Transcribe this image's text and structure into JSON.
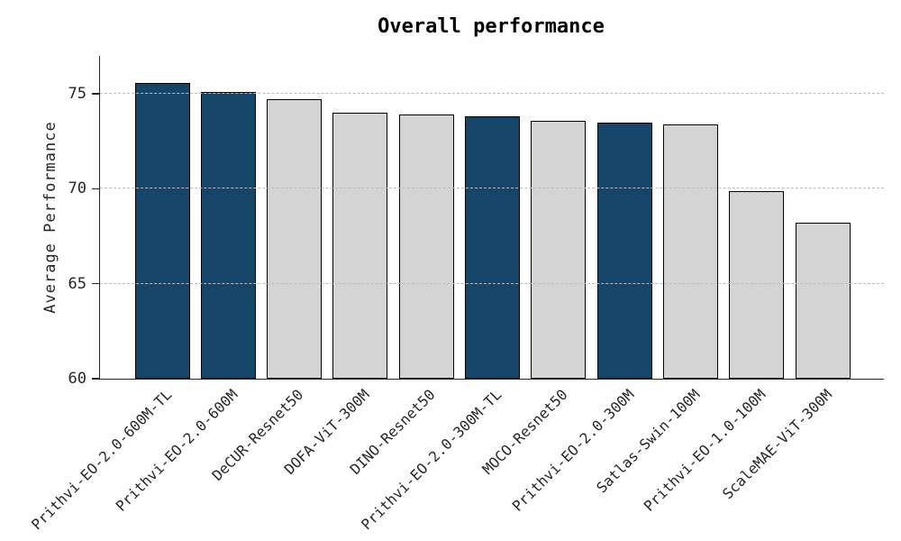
{
  "chart_data": {
    "type": "bar",
    "title": "Overall performance",
    "ylabel": "Average Performance",
    "xlabel": "",
    "categories": [
      "Prithvi-EO-2.0-600M-TL",
      "Prithvi-EO-2.0-600M",
      "DeCUR-Resnet50",
      "DOFA-ViT-300M",
      "DINO-Resnet50",
      "Prithvi-EO-2.0-300M-TL",
      "MOCO-Resnet50",
      "Prithvi-EO-2.0-300M",
      "Satlas-Swin-100M",
      "Prithvi-EO-1.0-100M",
      "ScaleMAE-ViT-300M"
    ],
    "values": [
      75.6,
      75.1,
      74.7,
      74.0,
      73.9,
      73.8,
      73.6,
      73.5,
      73.4,
      69.9,
      68.2
    ],
    "highlighted": [
      true,
      true,
      false,
      false,
      false,
      true,
      false,
      true,
      false,
      false,
      false
    ],
    "colors": {
      "highlight": "#15466a",
      "default": "#d4d4d4",
      "edge": "#000000",
      "grid": "#bcbcbc",
      "axis": "#262626",
      "text": "#262626",
      "background": "#ffffff"
    },
    "ylim": [
      60,
      77
    ],
    "yticks": [
      60,
      65,
      70,
      75
    ],
    "grid": {
      "axis": "y",
      "style": "dashed",
      "drawn_above_bars": true
    },
    "legend_position": "none",
    "xtick_rotation_deg": 45
  }
}
